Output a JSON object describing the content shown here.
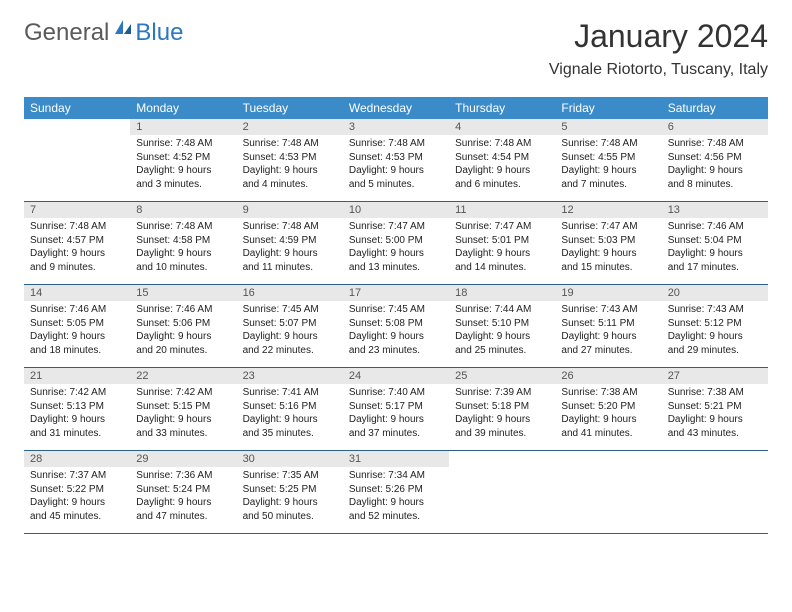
{
  "logo": {
    "general": "General",
    "blue": "Blue"
  },
  "title": "January 2024",
  "location": "Vignale Riotorto, Tuscany, Italy",
  "colors": {
    "header_bg": "#3b8bc8",
    "header_text": "#ffffff",
    "day_num_bg": "#e8e8e8",
    "row_divider": "#2b5f8c",
    "logo_gray": "#5a5a5a",
    "logo_blue": "#2b77c0"
  },
  "weekdays": [
    "Sunday",
    "Monday",
    "Tuesday",
    "Wednesday",
    "Thursday",
    "Friday",
    "Saturday"
  ],
  "start_weekday": 1,
  "days_in_month": 31,
  "first_day": 1,
  "days": {
    "1": {
      "sunrise": "7:48 AM",
      "sunset": "4:52 PM",
      "daylight": "9 hours and 3 minutes."
    },
    "2": {
      "sunrise": "7:48 AM",
      "sunset": "4:53 PM",
      "daylight": "9 hours and 4 minutes."
    },
    "3": {
      "sunrise": "7:48 AM",
      "sunset": "4:53 PM",
      "daylight": "9 hours and 5 minutes."
    },
    "4": {
      "sunrise": "7:48 AM",
      "sunset": "4:54 PM",
      "daylight": "9 hours and 6 minutes."
    },
    "5": {
      "sunrise": "7:48 AM",
      "sunset": "4:55 PM",
      "daylight": "9 hours and 7 minutes."
    },
    "6": {
      "sunrise": "7:48 AM",
      "sunset": "4:56 PM",
      "daylight": "9 hours and 8 minutes."
    },
    "7": {
      "sunrise": "7:48 AM",
      "sunset": "4:57 PM",
      "daylight": "9 hours and 9 minutes."
    },
    "8": {
      "sunrise": "7:48 AM",
      "sunset": "4:58 PM",
      "daylight": "9 hours and 10 minutes."
    },
    "9": {
      "sunrise": "7:48 AM",
      "sunset": "4:59 PM",
      "daylight": "9 hours and 11 minutes."
    },
    "10": {
      "sunrise": "7:47 AM",
      "sunset": "5:00 PM",
      "daylight": "9 hours and 13 minutes."
    },
    "11": {
      "sunrise": "7:47 AM",
      "sunset": "5:01 PM",
      "daylight": "9 hours and 14 minutes."
    },
    "12": {
      "sunrise": "7:47 AM",
      "sunset": "5:03 PM",
      "daylight": "9 hours and 15 minutes."
    },
    "13": {
      "sunrise": "7:46 AM",
      "sunset": "5:04 PM",
      "daylight": "9 hours and 17 minutes."
    },
    "14": {
      "sunrise": "7:46 AM",
      "sunset": "5:05 PM",
      "daylight": "9 hours and 18 minutes."
    },
    "15": {
      "sunrise": "7:46 AM",
      "sunset": "5:06 PM",
      "daylight": "9 hours and 20 minutes."
    },
    "16": {
      "sunrise": "7:45 AM",
      "sunset": "5:07 PM",
      "daylight": "9 hours and 22 minutes."
    },
    "17": {
      "sunrise": "7:45 AM",
      "sunset": "5:08 PM",
      "daylight": "9 hours and 23 minutes."
    },
    "18": {
      "sunrise": "7:44 AM",
      "sunset": "5:10 PM",
      "daylight": "9 hours and 25 minutes."
    },
    "19": {
      "sunrise": "7:43 AM",
      "sunset": "5:11 PM",
      "daylight": "9 hours and 27 minutes."
    },
    "20": {
      "sunrise": "7:43 AM",
      "sunset": "5:12 PM",
      "daylight": "9 hours and 29 minutes."
    },
    "21": {
      "sunrise": "7:42 AM",
      "sunset": "5:13 PM",
      "daylight": "9 hours and 31 minutes."
    },
    "22": {
      "sunrise": "7:42 AM",
      "sunset": "5:15 PM",
      "daylight": "9 hours and 33 minutes."
    },
    "23": {
      "sunrise": "7:41 AM",
      "sunset": "5:16 PM",
      "daylight": "9 hours and 35 minutes."
    },
    "24": {
      "sunrise": "7:40 AM",
      "sunset": "5:17 PM",
      "daylight": "9 hours and 37 minutes."
    },
    "25": {
      "sunrise": "7:39 AM",
      "sunset": "5:18 PM",
      "daylight": "9 hours and 39 minutes."
    },
    "26": {
      "sunrise": "7:38 AM",
      "sunset": "5:20 PM",
      "daylight": "9 hours and 41 minutes."
    },
    "27": {
      "sunrise": "7:38 AM",
      "sunset": "5:21 PM",
      "daylight": "9 hours and 43 minutes."
    },
    "28": {
      "sunrise": "7:37 AM",
      "sunset": "5:22 PM",
      "daylight": "9 hours and 45 minutes."
    },
    "29": {
      "sunrise": "7:36 AM",
      "sunset": "5:24 PM",
      "daylight": "9 hours and 47 minutes."
    },
    "30": {
      "sunrise": "7:35 AM",
      "sunset": "5:25 PM",
      "daylight": "9 hours and 50 minutes."
    },
    "31": {
      "sunrise": "7:34 AM",
      "sunset": "5:26 PM",
      "daylight": "9 hours and 52 minutes."
    }
  },
  "labels": {
    "sunrise": "Sunrise:",
    "sunset": "Sunset:",
    "daylight": "Daylight:"
  }
}
